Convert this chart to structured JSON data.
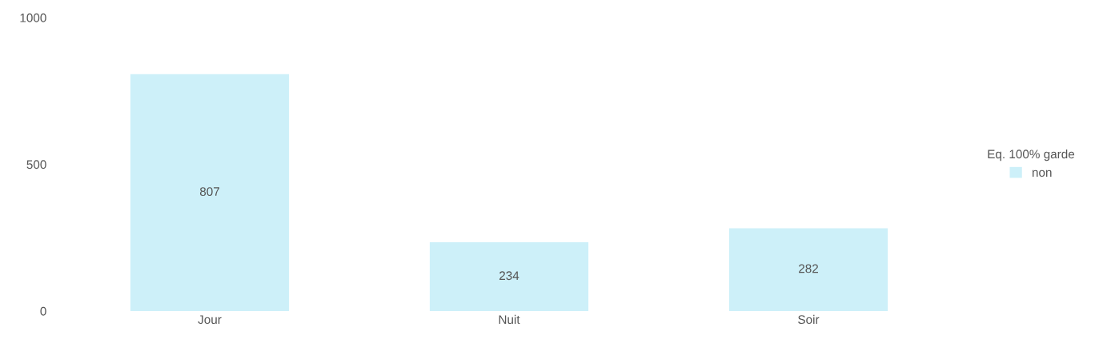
{
  "chart_data": {
    "type": "bar",
    "categories": [
      "Jour",
      "Nuit",
      "Soir"
    ],
    "series": [
      {
        "name": "non",
        "color": "#cdf0f9",
        "values": [
          807,
          234,
          282
        ]
      }
    ],
    "legend_title": "Eq. 100% garde",
    "legend": "right",
    "ylim": [
      0,
      1000
    ],
    "yticks": [
      0,
      500,
      1000
    ],
    "data_labels": true,
    "grid": false
  }
}
